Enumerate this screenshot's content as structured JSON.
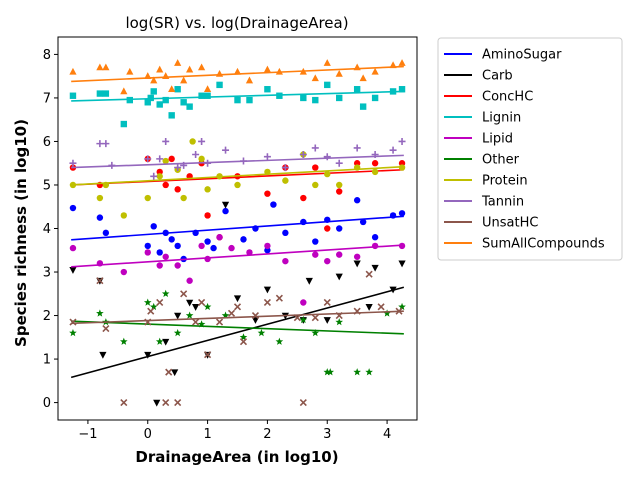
{
  "chart_data": {
    "type": "scatter",
    "title": "log(SR) vs. log(DrainageArea)",
    "xlabel": "DrainageArea (in log10)",
    "ylabel": "Species richness (in log10)",
    "xlim": [
      -1.5,
      4.5
    ],
    "ylim": [
      -0.4,
      8.4
    ],
    "xticks": [
      -1,
      0,
      1,
      2,
      3,
      4
    ],
    "yticks": [
      0,
      1,
      2,
      3,
      4,
      5,
      6,
      7,
      8
    ],
    "grid": false,
    "legend_position": "outside-right",
    "series": [
      {
        "name": "AminoSugar",
        "color": "#0000ff",
        "marker": "circle",
        "line": [
          [
            -1.28,
            3.74
          ],
          [
            4.28,
            4.28
          ]
        ],
        "points": [
          [
            -1.25,
            4.47
          ],
          [
            -0.8,
            4.25
          ],
          [
            -0.7,
            3.9
          ],
          [
            0,
            3.6
          ],
          [
            0.1,
            4.05
          ],
          [
            0.2,
            3.45
          ],
          [
            0.3,
            3.9
          ],
          [
            0.4,
            3.75
          ],
          [
            0.5,
            3.6
          ],
          [
            0.6,
            3.3
          ],
          [
            0.8,
            3.9
          ],
          [
            1.0,
            3.7
          ],
          [
            1.1,
            3.55
          ],
          [
            1.3,
            4.4
          ],
          [
            1.6,
            3.75
          ],
          [
            1.8,
            4.0
          ],
          [
            2.0,
            3.5
          ],
          [
            2.1,
            4.55
          ],
          [
            2.3,
            3.9
          ],
          [
            2.6,
            4.15
          ],
          [
            2.8,
            3.7
          ],
          [
            3.0,
            4.2
          ],
          [
            3.2,
            4.0
          ],
          [
            3.5,
            4.65
          ],
          [
            3.6,
            4.15
          ],
          [
            3.8,
            3.8
          ],
          [
            4.1,
            4.3
          ],
          [
            4.25,
            4.35
          ]
        ]
      },
      {
        "name": "Carb",
        "color": "#000000",
        "marker": "triangle-down",
        "line": [
          [
            -1.28,
            0.58
          ],
          [
            4.28,
            2.65
          ]
        ],
        "points": [
          [
            -1.25,
            3.05
          ],
          [
            -0.8,
            2.8
          ],
          [
            -0.75,
            1.1
          ],
          [
            0,
            1.1
          ],
          [
            0.15,
            0
          ],
          [
            0.3,
            1.4
          ],
          [
            0.45,
            0.7
          ],
          [
            0.5,
            2.0
          ],
          [
            0.7,
            2.3
          ],
          [
            0.8,
            2.2
          ],
          [
            1.0,
            1.1
          ],
          [
            1.3,
            4.55
          ],
          [
            1.5,
            2.4
          ],
          [
            1.8,
            1.9
          ],
          [
            2.0,
            2.6
          ],
          [
            2.3,
            2.0
          ],
          [
            2.6,
            1.9
          ],
          [
            2.7,
            2.8
          ],
          [
            3.0,
            1.9
          ],
          [
            3.2,
            2.9
          ],
          [
            3.5,
            3.2
          ],
          [
            3.7,
            2.2
          ],
          [
            3.8,
            3.1
          ],
          [
            4.1,
            2.6
          ],
          [
            4.25,
            3.2
          ]
        ]
      },
      {
        "name": "ConcHC",
        "color": "#ff0000",
        "marker": "circle",
        "line": [
          [
            -1.28,
            5.0
          ],
          [
            4.28,
            5.35
          ]
        ],
        "points": [
          [
            -1.25,
            5.4
          ],
          [
            -0.8,
            5.0
          ],
          [
            0,
            5.6
          ],
          [
            0.2,
            5.3
          ],
          [
            0.3,
            5.0
          ],
          [
            0.4,
            5.6
          ],
          [
            0.5,
            4.9
          ],
          [
            0.7,
            5.2
          ],
          [
            0.9,
            5.5
          ],
          [
            1.0,
            4.3
          ],
          [
            1.2,
            3.8
          ],
          [
            1.5,
            5.2
          ],
          [
            2.0,
            4.8
          ],
          [
            2.3,
            5.4
          ],
          [
            2.6,
            4.7
          ],
          [
            2.8,
            5.4
          ],
          [
            3.0,
            4.0
          ],
          [
            3.2,
            4.85
          ],
          [
            3.5,
            5.5
          ],
          [
            3.8,
            5.5
          ],
          [
            4.25,
            5.5
          ]
        ]
      },
      {
        "name": "Lignin",
        "color": "#00bfbf",
        "marker": "square",
        "line": [
          [
            -1.28,
            6.93
          ],
          [
            4.28,
            7.15
          ]
        ],
        "points": [
          [
            -1.25,
            7.05
          ],
          [
            -0.8,
            7.1
          ],
          [
            -0.7,
            7.1
          ],
          [
            -0.4,
            6.4
          ],
          [
            -0.3,
            6.95
          ],
          [
            0,
            6.9
          ],
          [
            0.05,
            7.0
          ],
          [
            0.1,
            7.15
          ],
          [
            0.2,
            6.85
          ],
          [
            0.3,
            6.95
          ],
          [
            0.4,
            6.6
          ],
          [
            0.5,
            7.2
          ],
          [
            0.6,
            6.9
          ],
          [
            0.7,
            6.8
          ],
          [
            0.9,
            7.05
          ],
          [
            1.0,
            7.05
          ],
          [
            1.2,
            7.3
          ],
          [
            1.5,
            6.95
          ],
          [
            1.7,
            6.95
          ],
          [
            2.0,
            7.2
          ],
          [
            2.2,
            7.05
          ],
          [
            2.6,
            7.0
          ],
          [
            2.8,
            6.95
          ],
          [
            3.0,
            7.3
          ],
          [
            3.2,
            7.0
          ],
          [
            3.5,
            7.2
          ],
          [
            3.6,
            6.8
          ],
          [
            3.8,
            7.0
          ],
          [
            4.1,
            7.15
          ],
          [
            4.25,
            7.2
          ]
        ]
      },
      {
        "name": "Lipid",
        "color": "#bf00bf",
        "marker": "circle",
        "line": [
          [
            -1.28,
            3.12
          ],
          [
            4.28,
            3.62
          ]
        ],
        "points": [
          [
            -1.25,
            3.55
          ],
          [
            -0.8,
            3.2
          ],
          [
            -0.4,
            3.0
          ],
          [
            0,
            3.45
          ],
          [
            0.2,
            3.15
          ],
          [
            0.3,
            3.35
          ],
          [
            0.5,
            3.15
          ],
          [
            0.7,
            2.8
          ],
          [
            0.9,
            3.6
          ],
          [
            1.0,
            3.3
          ],
          [
            1.2,
            3.8
          ],
          [
            1.4,
            3.55
          ],
          [
            1.7,
            3.45
          ],
          [
            2.0,
            3.6
          ],
          [
            2.3,
            3.25
          ],
          [
            2.6,
            2.3
          ],
          [
            2.8,
            3.4
          ],
          [
            3.0,
            3.25
          ],
          [
            3.2,
            3.4
          ],
          [
            3.5,
            3.35
          ],
          [
            3.8,
            3.6
          ],
          [
            4.25,
            3.6
          ]
        ]
      },
      {
        "name": "Other",
        "color": "#008000",
        "marker": "star",
        "line": [
          [
            -1.28,
            1.87
          ],
          [
            4.28,
            1.58
          ]
        ],
        "points": [
          [
            -1.25,
            1.6
          ],
          [
            -0.8,
            2.05
          ],
          [
            -0.7,
            1.85
          ],
          [
            -0.4,
            1.4
          ],
          [
            0,
            2.3
          ],
          [
            0.1,
            2.2
          ],
          [
            0.2,
            1.4
          ],
          [
            0.3,
            2.5
          ],
          [
            0.5,
            1.6
          ],
          [
            0.7,
            2.0
          ],
          [
            0.9,
            1.8
          ],
          [
            1.0,
            2.2
          ],
          [
            1.3,
            2.0
          ],
          [
            1.6,
            1.5
          ],
          [
            1.9,
            1.6
          ],
          [
            2.2,
            1.4
          ],
          [
            2.6,
            1.9
          ],
          [
            2.8,
            1.6
          ],
          [
            3.0,
            0.7
          ],
          [
            3.05,
            0.7
          ],
          [
            3.2,
            1.85
          ],
          [
            3.5,
            0.7
          ],
          [
            3.7,
            0.7
          ],
          [
            4.0,
            2.05
          ],
          [
            4.25,
            2.2
          ]
        ]
      },
      {
        "name": "Protein",
        "color": "#bfbf00",
        "marker": "circle",
        "line": [
          [
            -1.28,
            5.0
          ],
          [
            4.28,
            5.42
          ]
        ],
        "points": [
          [
            -1.25,
            5.0
          ],
          [
            -0.8,
            4.7
          ],
          [
            -0.7,
            5.0
          ],
          [
            -0.4,
            4.3
          ],
          [
            0,
            4.7
          ],
          [
            0.2,
            5.2
          ],
          [
            0.3,
            5.55
          ],
          [
            0.5,
            5.35
          ],
          [
            0.6,
            4.7
          ],
          [
            0.75,
            6.0
          ],
          [
            0.9,
            5.6
          ],
          [
            1.0,
            4.9
          ],
          [
            1.2,
            5.2
          ],
          [
            1.5,
            5.0
          ],
          [
            2.0,
            5.3
          ],
          [
            2.3,
            5.1
          ],
          [
            2.6,
            5.7
          ],
          [
            2.8,
            5.0
          ],
          [
            3.0,
            5.25
          ],
          [
            3.2,
            5.0
          ],
          [
            3.5,
            5.4
          ],
          [
            3.8,
            5.3
          ],
          [
            4.25,
            5.4
          ]
        ]
      },
      {
        "name": "Tannin",
        "color": "#9467bd",
        "marker": "plus",
        "line": [
          [
            -1.28,
            5.4
          ],
          [
            4.28,
            5.68
          ]
        ],
        "points": [
          [
            -1.25,
            5.5
          ],
          [
            -0.8,
            5.95
          ],
          [
            -0.7,
            5.95
          ],
          [
            -0.6,
            5.45
          ],
          [
            0,
            5.6
          ],
          [
            0.1,
            5.2
          ],
          [
            0.2,
            5.6
          ],
          [
            0.3,
            6.0
          ],
          [
            0.5,
            5.4
          ],
          [
            0.6,
            5.45
          ],
          [
            0.8,
            5.7
          ],
          [
            0.9,
            6.0
          ],
          [
            1.0,
            5.5
          ],
          [
            1.3,
            5.8
          ],
          [
            1.6,
            5.55
          ],
          [
            2.0,
            5.65
          ],
          [
            2.3,
            5.4
          ],
          [
            2.6,
            5.7
          ],
          [
            2.8,
            5.85
          ],
          [
            3.0,
            5.65
          ],
          [
            3.2,
            5.5
          ],
          [
            3.5,
            5.85
          ],
          [
            3.8,
            5.7
          ],
          [
            4.1,
            5.8
          ],
          [
            4.25,
            6.0
          ]
        ]
      },
      {
        "name": "UnsatHC",
        "color": "#8c564b",
        "marker": "x",
        "line": [
          [
            -1.28,
            1.82
          ],
          [
            4.28,
            2.1
          ]
        ],
        "points": [
          [
            -1.25,
            1.85
          ],
          [
            -0.8,
            2.8
          ],
          [
            -0.7,
            1.7
          ],
          [
            -0.4,
            0
          ],
          [
            0,
            1.85
          ],
          [
            0.05,
            2.1
          ],
          [
            0.2,
            2.3
          ],
          [
            0.3,
            0
          ],
          [
            0.35,
            0.7
          ],
          [
            0.5,
            0
          ],
          [
            0.6,
            2.5
          ],
          [
            0.8,
            1.85
          ],
          [
            0.9,
            2.3
          ],
          [
            1.0,
            1.1
          ],
          [
            1.2,
            1.85
          ],
          [
            1.4,
            2.05
          ],
          [
            1.5,
            2.2
          ],
          [
            1.6,
            1.4
          ],
          [
            1.8,
            2.0
          ],
          [
            2.0,
            2.3
          ],
          [
            2.2,
            2.4
          ],
          [
            2.5,
            1.95
          ],
          [
            2.6,
            0
          ],
          [
            2.8,
            1.95
          ],
          [
            3.0,
            2.3
          ],
          [
            3.2,
            2.0
          ],
          [
            3.5,
            2.1
          ],
          [
            3.7,
            2.95
          ],
          [
            3.9,
            2.2
          ],
          [
            4.2,
            2.1
          ]
        ]
      },
      {
        "name": "SumAllCompounds",
        "color": "#ff7f0e",
        "marker": "triangle-up",
        "line": [
          [
            -1.28,
            7.38
          ],
          [
            4.28,
            7.72
          ]
        ],
        "points": [
          [
            -1.25,
            7.6
          ],
          [
            -0.8,
            7.7
          ],
          [
            -0.7,
            7.7
          ],
          [
            -0.4,
            7.15
          ],
          [
            -0.3,
            7.6
          ],
          [
            0,
            7.5
          ],
          [
            0.1,
            7.4
          ],
          [
            0.2,
            7.65
          ],
          [
            0.3,
            7.5
          ],
          [
            0.4,
            7.2
          ],
          [
            0.5,
            7.8
          ],
          [
            0.6,
            7.4
          ],
          [
            0.7,
            7.65
          ],
          [
            0.9,
            7.7
          ],
          [
            1.0,
            7.2
          ],
          [
            1.2,
            7.55
          ],
          [
            1.5,
            7.6
          ],
          [
            1.7,
            7.4
          ],
          [
            2.0,
            7.65
          ],
          [
            2.2,
            7.6
          ],
          [
            2.6,
            7.6
          ],
          [
            2.8,
            7.45
          ],
          [
            3.0,
            7.8
          ],
          [
            3.2,
            7.55
          ],
          [
            3.5,
            7.7
          ],
          [
            3.6,
            7.45
          ],
          [
            3.8,
            7.6
          ],
          [
            4.1,
            7.75
          ],
          [
            4.25,
            7.8
          ]
        ]
      }
    ]
  }
}
